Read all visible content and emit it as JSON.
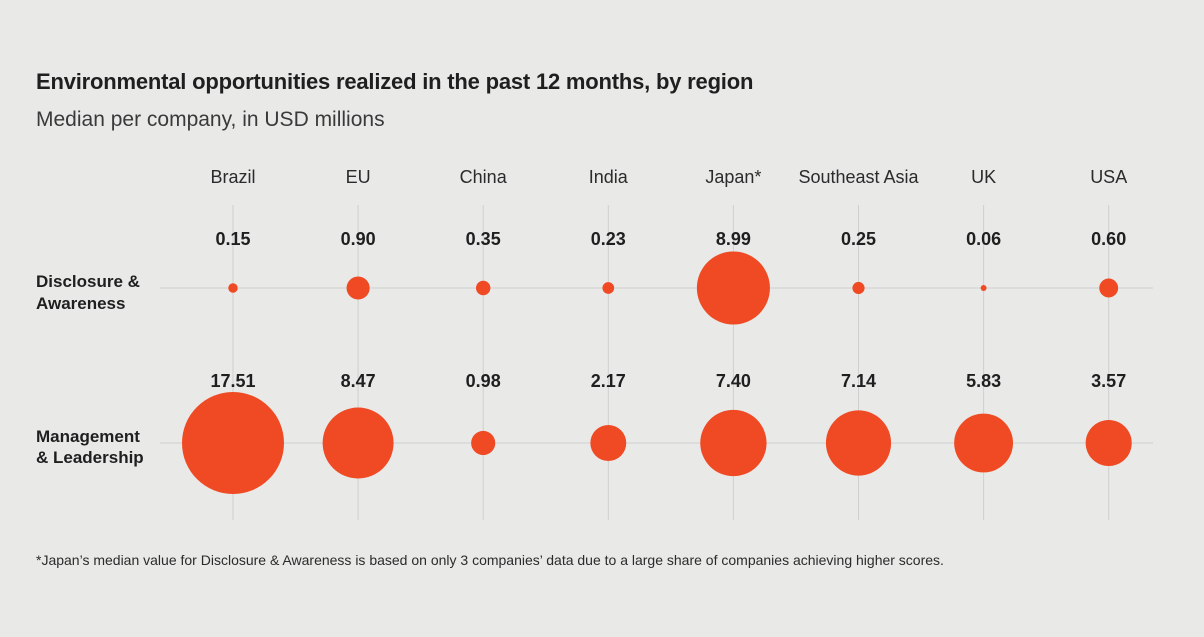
{
  "chart_data": {
    "type": "bubble-grid",
    "title": "Environmental opportunities realized in the past 12 months, by region",
    "subtitle": "Median per company, in USD millions",
    "categories": [
      "Brazil",
      "EU",
      "China",
      "India",
      "Japan*",
      "Southeast Asia",
      "UK",
      "USA"
    ],
    "series": [
      {
        "name_lines": [
          "Disclosure &",
          "Awareness"
        ],
        "values": [
          0.15,
          0.9,
          0.35,
          0.23,
          8.99,
          0.25,
          0.06,
          0.6
        ],
        "value_labels": [
          "0.15",
          "0.90",
          "0.35",
          "0.23",
          "8.99",
          "0.25",
          "0.06",
          "0.60"
        ]
      },
      {
        "name_lines": [
          "Management",
          "& Leadership"
        ],
        "values": [
          17.51,
          8.47,
          0.98,
          2.17,
          7.4,
          7.14,
          5.83,
          3.57
        ],
        "value_labels": [
          "17.51",
          "8.47",
          "0.98",
          "2.17",
          "7.40",
          "7.14",
          "5.83",
          "3.57"
        ]
      }
    ],
    "footnote": "*Japan’s median value for Disclosure & Awareness is based on only 3 companies’ data due to a large share of companies achieving higher scores.",
    "colors": {
      "bubble": "#ef4a23",
      "grid": "#cfcfcf"
    }
  }
}
